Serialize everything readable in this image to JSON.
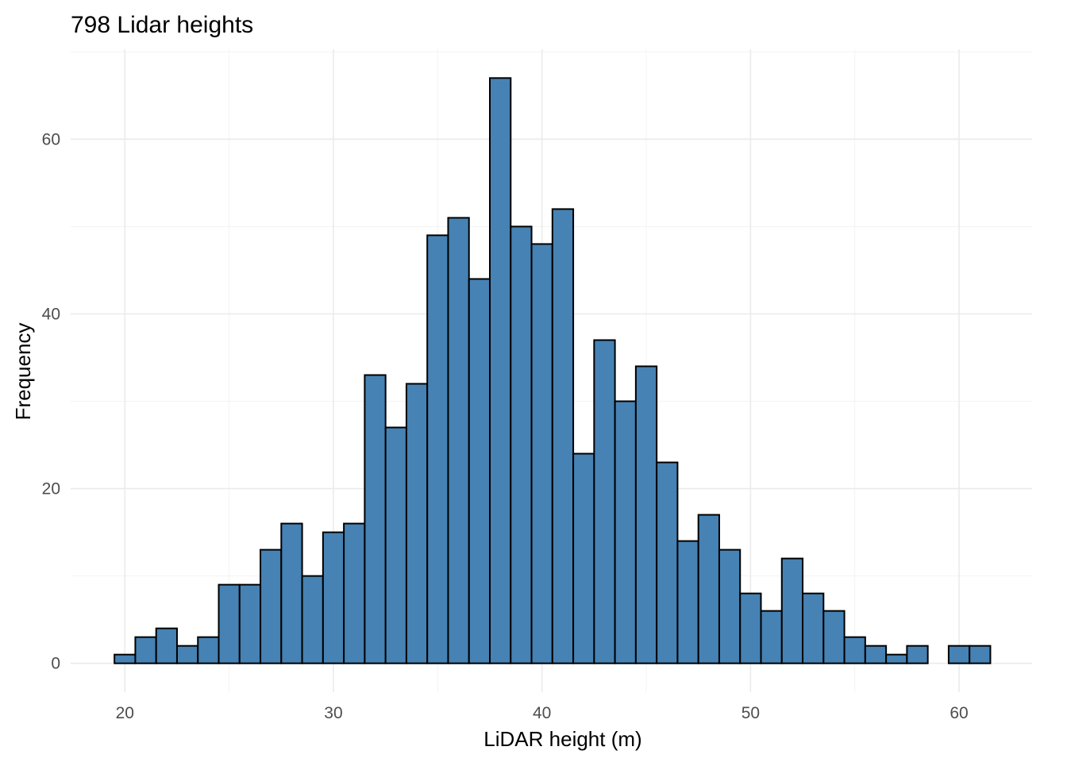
{
  "chart_data": {
    "type": "bar",
    "subtype": "histogram",
    "title": "798 Lidar heights",
    "xlabel": "LiDAR height (m)",
    "ylabel": "Frequency",
    "bin_width": 1,
    "bin_centers": [
      20,
      21,
      22,
      23,
      24,
      25,
      26,
      27,
      28,
      29,
      30,
      31,
      32,
      33,
      34,
      35,
      36,
      37,
      38,
      39,
      40,
      41,
      42,
      43,
      44,
      45,
      46,
      47,
      48,
      49,
      50,
      51,
      52,
      53,
      54,
      55,
      56,
      57,
      58,
      59,
      60,
      61
    ],
    "values": [
      1,
      3,
      4,
      2,
      3,
      9,
      9,
      13,
      16,
      10,
      15,
      16,
      33,
      27,
      32,
      49,
      51,
      44,
      67,
      50,
      48,
      52,
      24,
      37,
      30,
      34,
      23,
      14,
      17,
      13,
      8,
      6,
      12,
      8,
      6,
      3,
      2,
      1,
      2,
      0,
      2,
      2
    ],
    "xlim": [
      17.4,
      63.5
    ],
    "ylim": [
      -3.3,
      70.3
    ],
    "x_ticks": [
      20,
      30,
      40,
      50,
      60
    ],
    "y_ticks": [
      0,
      20,
      40,
      60
    ],
    "grid": true,
    "legend": "none",
    "colors": {
      "fill": "#4682b4",
      "edge": "#000000"
    }
  }
}
